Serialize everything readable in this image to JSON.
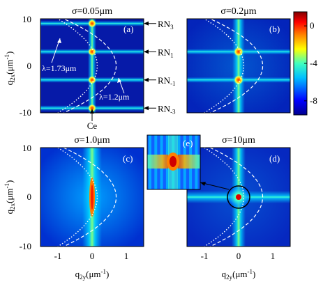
{
  "chart_data": [
    {
      "type": "heatmap",
      "panel_label": "(a)",
      "title": "σ=0.05μm",
      "xlim": [
        -1.5,
        1.5
      ],
      "ylim": [
        -10,
        10
      ],
      "yticks": [
        "10",
        "0",
        "-10"
      ],
      "ylabel": "q",
      "ylabel_sub": "2x",
      "ylabel_unit": "(μm",
      "ylabel_sup": "-1",
      "ylabel_close": ")",
      "vertical_line_x": 0,
      "resonance_lines_y": [
        9,
        3,
        -3,
        -9
      ],
      "annotations": {
        "rn_labels": [
          {
            "base": "RN",
            "sub": "3",
            "y": 9
          },
          {
            "base": "RN",
            "sub": "1",
            "y": 3
          },
          {
            "base": "RN",
            "sub": "-1",
            "y": -3
          },
          {
            "base": "RN",
            "sub": "-3",
            "y": -9
          }
        ],
        "lambda_dotted": "λ=1.73μm",
        "lambda_dashed": "λ=1.2μm",
        "center_label": "Ce"
      }
    },
    {
      "type": "heatmap",
      "panel_label": "(b)",
      "title": "σ=0.2μm",
      "xlim": [
        -1.5,
        1.5
      ],
      "ylim": [
        -10,
        10
      ],
      "vertical_line_x": 0,
      "resonance_lines_y": [
        3,
        -3
      ]
    },
    {
      "type": "heatmap",
      "panel_label": "(c)",
      "title": "σ=1.0μm",
      "xlim": [
        -1.5,
        1.5
      ],
      "ylim": [
        -10,
        10
      ],
      "yticks": [
        "10",
        "0",
        "-10"
      ],
      "xticks": [
        "-1",
        "0",
        "1"
      ],
      "ylabel": "q",
      "ylabel_sub": "2x",
      "ylabel_unit": "(μm",
      "ylabel_sup": "-1",
      "ylabel_close": ")",
      "xlabel": "q",
      "xlabel_sub": "2y",
      "xlabel_unit": "(μm",
      "xlabel_sup": "-1",
      "xlabel_close": ")",
      "vertical_line_x": 0
    },
    {
      "type": "heatmap",
      "panel_label": "(d)",
      "title": "σ=10μm",
      "xlim": [
        -1.5,
        1.5
      ],
      "ylim": [
        -10,
        10
      ],
      "xticks": [
        "-1",
        "0",
        "1"
      ],
      "xlabel": "q",
      "xlabel_sub": "2y",
      "xlabel_unit": "(μm",
      "xlabel_sup": "-1",
      "xlabel_close": ")",
      "vertical_line_x": 0,
      "horizontal_line_y": 0,
      "inset_label": "(e)"
    }
  ],
  "colorbar": {
    "ticks": [
      "0",
      "-4",
      "-8"
    ],
    "tick_values": [
      0,
      -4,
      -8
    ],
    "range": [
      -9.5,
      1.5
    ],
    "colors": [
      "#00008f",
      "#0000ff",
      "#00bfff",
      "#40ffbf",
      "#ffff00",
      "#ff8000",
      "#ff0000",
      "#800000"
    ]
  },
  "curves": {
    "dashed_vertex_x": 0.7,
    "dotted_vertex_x": 0.15,
    "y_span": 12
  }
}
